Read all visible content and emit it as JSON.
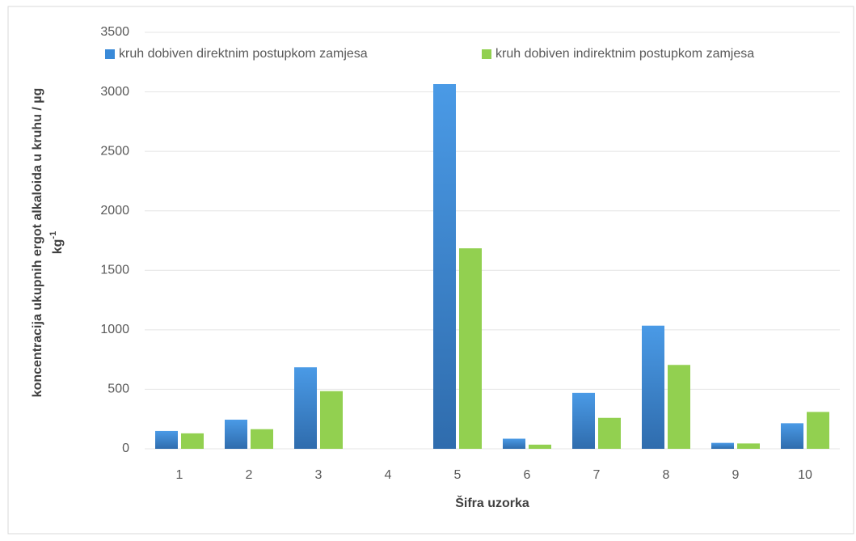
{
  "chart_data": {
    "type": "bar",
    "y_label": [
      "koncentracija ukupnih ergot alkaloida u kruhu / µg",
      "kg"
    ],
    "y_label_superscript": "-1",
    "x_label": "Šifra uzorka",
    "categories": [
      "1",
      "2",
      "3",
      "4",
      "5",
      "6",
      "7",
      "8",
      "9",
      "10"
    ],
    "series": [
      {
        "name": "kruh dobiven direktnim postupkom zamjesa",
        "color": "#3a8ad8",
        "values": [
          150,
          245,
          685,
          0,
          3065,
          85,
          470,
          1035,
          50,
          215
        ]
      },
      {
        "name": "kruh dobiven indirektnim postupkom zamjesa",
        "color": "#92d050",
        "values": [
          130,
          165,
          485,
          0,
          1685,
          35,
          260,
          705,
          45,
          310
        ]
      }
    ],
    "ylim": [
      0,
      3500
    ],
    "yticks": [
      0,
      500,
      1000,
      1500,
      2000,
      2500,
      3000,
      3500
    ],
    "grid": true,
    "legend": "top"
  }
}
